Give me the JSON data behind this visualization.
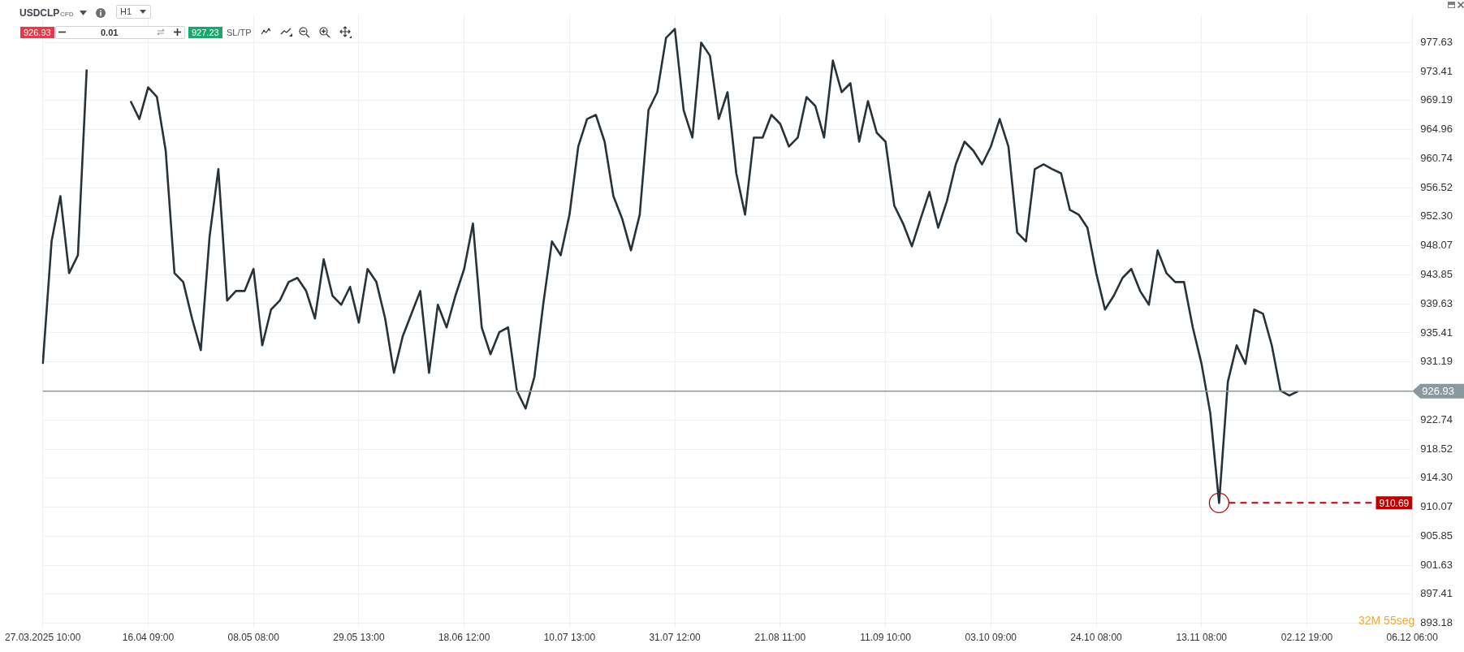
{
  "chart_data": {
    "type": "line",
    "title": "USDCLP",
    "subtitle": "CFD",
    "annotations": [
      "H1",
      "926.93",
      "0.01",
      "927.23",
      "SL/TP",
      "32M 55seg"
    ],
    "categories": [
      "27.03.2025 10:00",
      null,
      null,
      null,
      null,
      null,
      null,
      null,
      null,
      null,
      null,
      null,
      "16.04 09:00",
      null,
      null,
      null,
      null,
      null,
      null,
      null,
      null,
      null,
      null,
      null,
      "08.05 08:00",
      null,
      null,
      null,
      null,
      null,
      null,
      null,
      null,
      null,
      null,
      null,
      "29.05 13:00",
      null,
      null,
      null,
      null,
      null,
      null,
      null,
      null,
      null,
      null,
      null,
      "18.06 12:00",
      null,
      null,
      null,
      null,
      null,
      null,
      null,
      null,
      null,
      null,
      null,
      "10.07 13:00",
      null,
      null,
      null,
      null,
      null,
      null,
      null,
      null,
      null,
      null,
      null,
      "31.07 12:00",
      null,
      null,
      null,
      null,
      null,
      null,
      null,
      null,
      null,
      null,
      null,
      "21.08 11:00",
      null,
      null,
      null,
      null,
      null,
      null,
      null,
      null,
      null,
      null,
      null,
      "11.09 10:00",
      null,
      null,
      null,
      null,
      null,
      null,
      null,
      null,
      null,
      null,
      null,
      "03.10 09:00",
      null,
      null,
      null,
      null,
      null,
      null,
      null,
      null,
      null,
      null,
      null,
      "24.10 08:00",
      null,
      null,
      null,
      null,
      null,
      null,
      null,
      null,
      null,
      null,
      null,
      "13.11 08:00",
      null,
      null,
      null,
      null,
      null,
      null,
      null,
      null,
      null,
      null,
      null,
      "02.12 19:00",
      null,
      null,
      null,
      null,
      null,
      null,
      null,
      null,
      null,
      null,
      null,
      "06.12 06:00"
    ],
    "series": [
      {
        "color": "#27323a",
        "values": [
          930.9,
          948.7,
          955.3,
          944.1,
          946.7,
          973.7,
          null,
          null,
          null,
          null,
          969.1,
          966.5,
          971.1,
          969.7,
          961.9,
          944.1,
          942.8,
          937.5,
          932.9,
          949.4,
          959.2,
          940.1,
          941.5,
          941.5,
          944.7,
          933.6,
          938.8,
          940.1,
          942.8,
          943.4,
          941.5,
          937.5,
          946.1,
          940.8,
          939.5,
          942.1,
          936.9,
          944.7,
          942.8,
          937.5,
          929.6,
          934.9,
          938.2,
          941.5,
          929.6,
          939.5,
          936.2,
          940.8,
          944.7,
          951.3,
          936.2,
          932.3,
          935.5,
          936.2,
          927.0,
          924.4,
          929.0,
          939.5,
          948.7,
          946.7,
          952.6,
          962.5,
          966.5,
          967.1,
          963.2,
          955.3,
          952.0,
          947.4,
          952.6,
          967.8,
          970.4,
          978.3,
          979.6,
          967.8,
          963.8,
          977.6,
          975.7,
          966.5,
          970.4,
          958.6,
          952.6,
          963.8,
          963.8,
          967.1,
          965.8,
          962.5,
          963.8,
          969.7,
          968.4,
          963.8,
          975.0,
          970.4,
          971.7,
          963.2,
          969.1,
          964.5,
          963.2,
          953.9,
          951.3,
          948.0,
          952.0,
          955.9,
          950.7,
          954.6,
          959.9,
          963.2,
          961.9,
          959.9,
          962.5,
          966.5,
          962.5,
          950.0,
          948.7,
          959.2,
          959.9,
          959.2,
          958.6,
          953.3,
          952.6,
          950.7,
          944.1,
          938.8,
          940.8,
          943.4,
          944.7,
          941.5,
          939.5,
          947.4,
          944.1,
          942.8,
          942.8,
          936.2,
          930.9,
          923.7,
          910.69,
          928.3,
          933.6,
          930.9,
          938.8,
          938.2,
          933.6,
          927.0,
          926.3,
          926.93,
          null,
          null,
          null,
          null,
          null,
          null,
          null,
          null,
          null,
          null,
          null,
          null,
          null
        ]
      }
    ],
    "ylim": [
      892.6,
      981.7
    ],
    "yticks": [
      893.18,
      897.41,
      901.63,
      905.85,
      910.07,
      {
        "value": 914.3,
        "label": "914.30"
      },
      918.52,
      922.74,
      931.19,
      935.41,
      939.63,
      943.85,
      948.07,
      {
        "value": 952.3,
        "label": "952.30"
      },
      956.52,
      960.74,
      964.96,
      969.19,
      973.41,
      977.63
    ],
    "ref_lines": [
      {
        "axis": "y",
        "value": 926.93,
        "label": "926.93",
        "color": "#8a999e",
        "line_style": "solid"
      },
      {
        "axis": "y",
        "value": 910.69,
        "label": "910.69",
        "color": "#c00000",
        "line_style": "dashed"
      }
    ],
    "grid": true,
    "marker": "none",
    "line_style": "solid"
  }
}
